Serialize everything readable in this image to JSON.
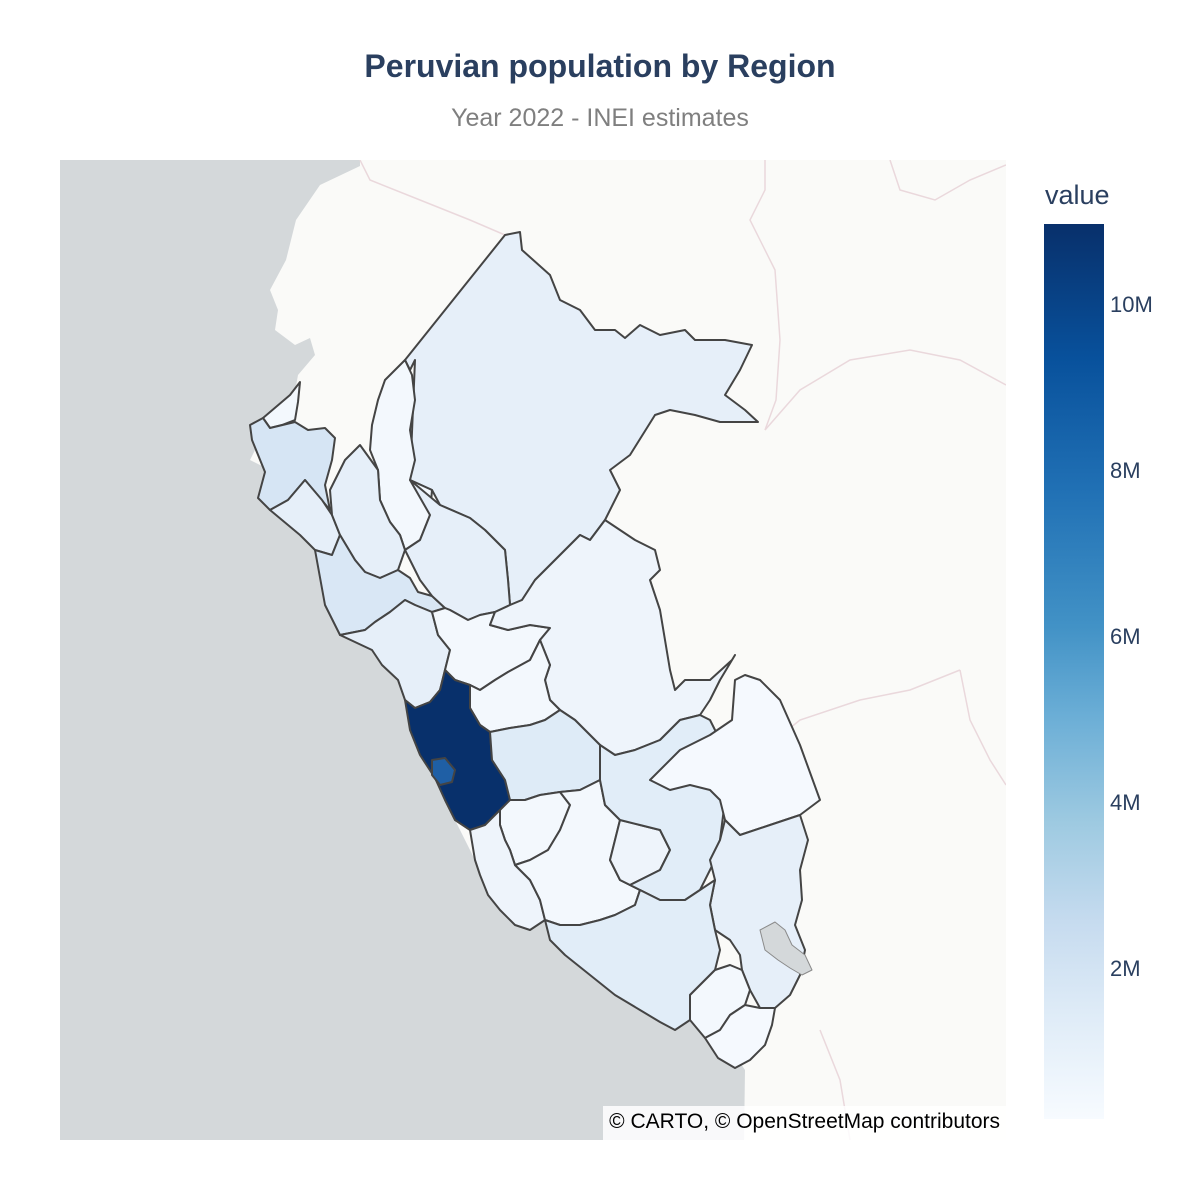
{
  "title": "Peruvian population by Region",
  "subtitle": "Year 2022 - INEI estimates",
  "map": {
    "attribution": "© CARTO, © OpenStreetMap contributors",
    "colorscale": "Blues",
    "ocean_color": "#d4d8da",
    "land_color": "#fafaf8",
    "region_stroke": "#444444"
  },
  "colorbar": {
    "title": "value",
    "ticks": [
      "10M",
      "8M",
      "6M",
      "4M",
      "2M"
    ],
    "range": [
      0,
      11000000
    ]
  },
  "regions": {
    "lima": {
      "fill": "#08306b"
    },
    "callao": {
      "fill": "#1f5fa5"
    }
  }
}
